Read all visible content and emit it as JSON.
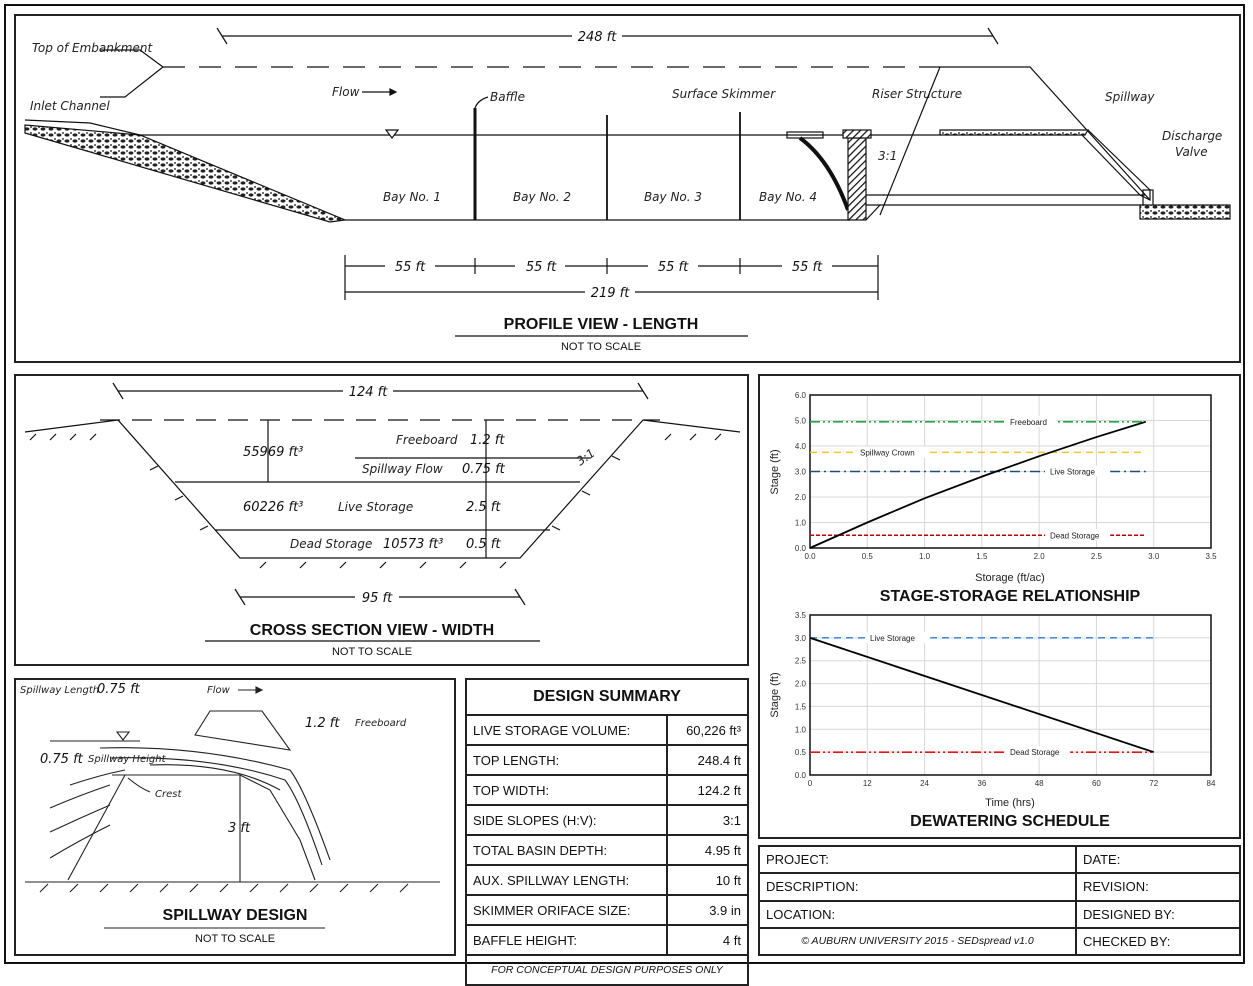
{
  "profile": {
    "title": "PROFILE VIEW - LENGTH",
    "subtitle": "NOT TO SCALE",
    "top_length": "248 ft",
    "labels": {
      "top_embankment": "Top of Embankment",
      "inlet": "Inlet Channel",
      "flow": "Flow",
      "baffle": "Baffle",
      "skimmer": "Surface Skimmer",
      "riser": "Riser Structure",
      "spillway": "Spillway",
      "discharge1": "Discharge",
      "discharge2": "Valve",
      "slope": "3:1"
    },
    "bays": [
      "Bay No. 1",
      "Bay No. 2",
      "Bay No. 3",
      "Bay No. 4"
    ],
    "bay_lengths": [
      "55 ft",
      "55 ft",
      "55 ft",
      "55 ft"
    ],
    "bottom_length": "219 ft"
  },
  "cross_section": {
    "title": "CROSS SECTION VIEW - WIDTH",
    "subtitle": "NOT TO SCALE",
    "top_width": "124 ft",
    "bottom_width": "95 ft",
    "slope": "3:1",
    "vol_top": "55969 ft³",
    "freeboard_label": "Freeboard",
    "freeboard": "1.2 ft",
    "spillway_flow_label": "Spillway Flow",
    "spillway_flow": "0.75 ft",
    "vol_live": "60226 ft³",
    "live_label": "Live Storage",
    "live": "2.5 ft",
    "dead_label": "Dead Storage",
    "vol_dead": "10573 ft³",
    "dead": "0.5 ft"
  },
  "spillway": {
    "title": "SPILLWAY DESIGN",
    "subtitle": "NOT TO SCALE",
    "length_label": "Spillway Length",
    "length": "0.75 ft",
    "flow": "Flow",
    "freeboard": "1.2 ft",
    "freeboard_label": "Freeboard",
    "height": "0.75 ft",
    "height_label": "Spillway Height",
    "crest": "Crest",
    "depth": "3 ft"
  },
  "design_summary": {
    "title": "DESIGN SUMMARY",
    "rows": [
      {
        "label": "LIVE STORAGE VOLUME:",
        "value": "60,226 ft³"
      },
      {
        "label": "TOP LENGTH:",
        "value": "248.4 ft"
      },
      {
        "label": "TOP WIDTH:",
        "value": "124.2 ft"
      },
      {
        "label": "SIDE SLOPES (H:V):",
        "value": "3:1"
      },
      {
        "label": "TOTAL BASIN DEPTH:",
        "value": "4.95 ft"
      },
      {
        "label": "AUX. SPILLWAY LENGTH:",
        "value": "10 ft"
      },
      {
        "label": "SKIMMER ORIFACE SIZE:",
        "value": "3.9 in"
      },
      {
        "label": "BAFFLE HEIGHT:",
        "value": "4 ft"
      }
    ],
    "footer": "FOR CONCEPTUAL DESIGN PURPOSES ONLY"
  },
  "title_block": {
    "project": "PROJECT:",
    "date": "DATE:",
    "description": "DESCRIPTION:",
    "revision": "REVISION:",
    "location": "LOCATION:",
    "designed_by": "DESIGNED BY:",
    "copyright": "© AUBURN UNIVERSITY 2015 - SEDspread v1.0",
    "checked_by": "CHECKED BY:"
  },
  "chart_data": [
    {
      "type": "line",
      "title": "STAGE-STORAGE RELATIONSHIP",
      "xlabel": "Storage (ft/ac)",
      "ylabel": "Stage (ft)",
      "xlim": [
        0,
        3.5
      ],
      "ylim": [
        0,
        6
      ],
      "xticks": [
        "0.0",
        "0.5",
        "1.0",
        "1.5",
        "2.0",
        "2.5",
        "3.0",
        "3.5"
      ],
      "yticks": [
        "0.0",
        "1.0",
        "2.0",
        "3.0",
        "4.0",
        "5.0",
        "6.0"
      ],
      "grid": true,
      "series": [
        {
          "x": [
            0,
            0.5,
            1.0,
            1.5,
            2.0,
            2.5,
            2.93
          ],
          "y": [
            0,
            1.0,
            1.95,
            2.8,
            3.6,
            4.35,
            4.95
          ],
          "color": "#000000"
        }
      ],
      "reference_lines": [
        {
          "name": "Freeboard",
          "y": 4.95,
          "x_end": 2.93,
          "color": "#22aa44",
          "style": "dash-dot-dot"
        },
        {
          "name": "Spillway Crown",
          "y": 3.75,
          "x_end": 2.93,
          "color": "#f2c230",
          "style": "dash"
        },
        {
          "name": "Live Storage",
          "y": 3.0,
          "x_end": 2.93,
          "color": "#1f4e79",
          "style": "dash-dot"
        },
        {
          "name": "Dead Storage",
          "y": 0.5,
          "x_end": 2.93,
          "color": "#c00000",
          "style": "short-dash"
        }
      ]
    },
    {
      "type": "line",
      "title": "DEWATERING SCHEDULE",
      "xlabel": "Time (hrs)",
      "ylabel": "Stage (ft)",
      "xlim": [
        0,
        84
      ],
      "ylim": [
        0,
        3.5
      ],
      "xticks": [
        "0",
        "12",
        "24",
        "36",
        "48",
        "60",
        "72",
        "84"
      ],
      "yticks": [
        "0.0",
        "0.5",
        "1.0",
        "1.5",
        "2.0",
        "2.5",
        "3.0",
        "3.5"
      ],
      "grid": true,
      "series": [
        {
          "x": [
            0,
            72
          ],
          "y": [
            3.0,
            0.5
          ],
          "color": "#000000"
        }
      ],
      "reference_lines": [
        {
          "name": "Live Storage",
          "y": 3.0,
          "x_end": 72,
          "color": "#4a90d0",
          "style": "dash"
        },
        {
          "name": "Dead Storage",
          "y": 0.5,
          "x_end": 72,
          "color": "#ee1111",
          "style": "dash-dot-dot"
        }
      ]
    }
  ]
}
